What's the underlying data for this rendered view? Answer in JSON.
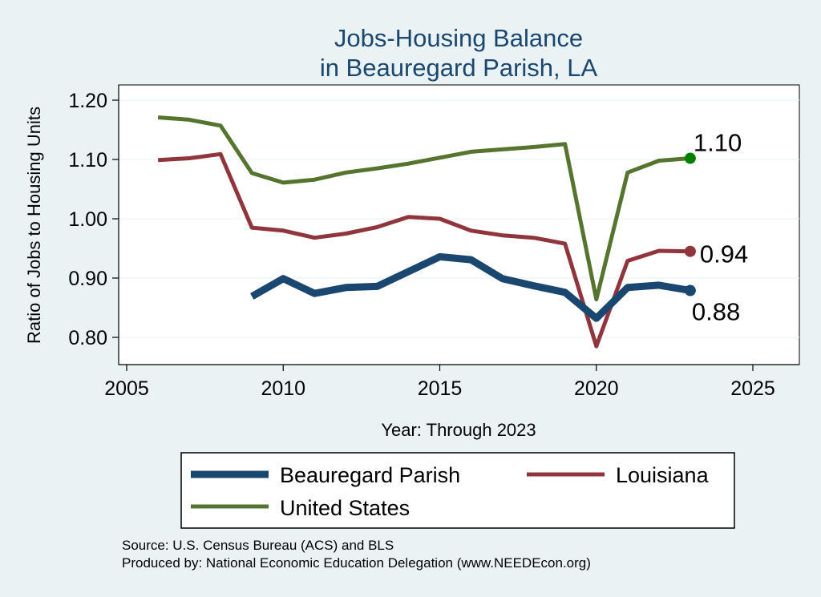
{
  "chart_data": {
    "type": "line",
    "title": [
      "Jobs-Housing Balance",
      "in Beauregard Parish, LA"
    ],
    "xlabel": "Year: Through 2023",
    "ylabel": "Ratio of Jobs to Housing Units",
    "xlim": [
      2005,
      2025
    ],
    "ylim": [
      0.77,
      1.23
    ],
    "x_ticks": [
      2005,
      2010,
      2015,
      2020,
      2025
    ],
    "y_ticks": [
      0.8,
      0.9,
      1.0,
      1.1,
      1.2
    ],
    "y_tick_labels": [
      "0.80",
      "0.90",
      "1.00",
      "1.10",
      "1.20"
    ],
    "grid": true,
    "legend_position": "bottom",
    "series": [
      {
        "name": "Beauregard Parish",
        "color": "#1a476f",
        "end_label": "0.88",
        "x": [
          2009,
          2010,
          2011,
          2012,
          2013,
          2014,
          2015,
          2016,
          2017,
          2018,
          2019,
          2020,
          2021,
          2022,
          2023
        ],
        "values": [
          0.869,
          0.899,
          0.874,
          0.884,
          0.886,
          0.911,
          0.936,
          0.931,
          0.899,
          0.887,
          0.876,
          0.832,
          0.884,
          0.888,
          0.879
        ]
      },
      {
        "name": "Louisiana",
        "color": "#90353b",
        "end_label": "0.94",
        "x": [
          2006,
          2007,
          2008,
          2009,
          2010,
          2011,
          2012,
          2013,
          2014,
          2015,
          2016,
          2017,
          2018,
          2019,
          2020,
          2021,
          2022,
          2023
        ],
        "values": [
          1.099,
          1.102,
          1.109,
          0.985,
          0.98,
          0.968,
          0.975,
          0.986,
          1.003,
          1.0,
          0.98,
          0.972,
          0.968,
          0.958,
          0.785,
          0.929,
          0.946,
          0.945
        ]
      },
      {
        "name": "United States",
        "color": "#55752f",
        "end_label": "1.10",
        "x": [
          2006,
          2007,
          2008,
          2009,
          2010,
          2011,
          2012,
          2013,
          2014,
          2015,
          2016,
          2017,
          2018,
          2019,
          2020,
          2021,
          2022,
          2023
        ],
        "values": [
          1.171,
          1.167,
          1.157,
          1.077,
          1.061,
          1.066,
          1.078,
          1.085,
          1.093,
          1.103,
          1.113,
          1.117,
          1.121,
          1.126,
          0.864,
          1.078,
          1.098,
          1.102
        ]
      }
    ]
  },
  "source": {
    "line1": "Source: U.S. Census Bureau (ACS) and BLS",
    "line2": "Produced by: National Economic Education Delegation (www.NEEDEcon.org)"
  },
  "colors": {
    "background": "#eaf2f3",
    "plot_background": "#ffffff",
    "grid": "#eaf2f3",
    "title": "#1a476f",
    "end_marker_us": "#008000"
  }
}
